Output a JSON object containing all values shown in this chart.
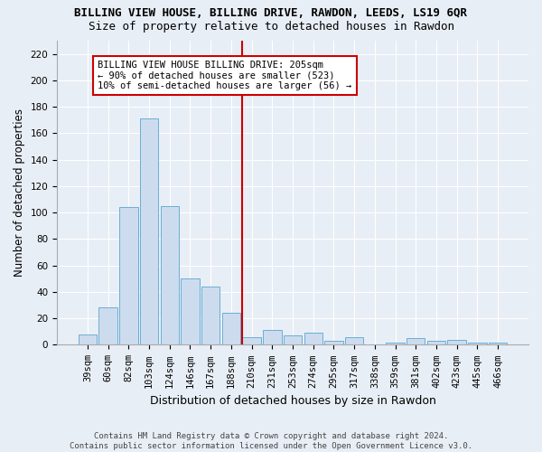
{
  "title": "BILLING VIEW HOUSE, BILLING DRIVE, RAWDON, LEEDS, LS19 6QR",
  "subtitle": "Size of property relative to detached houses in Rawdon",
  "xlabel": "Distribution of detached houses by size in Rawdon",
  "ylabel": "Number of detached properties",
  "bar_labels": [
    "39sqm",
    "60sqm",
    "82sqm",
    "103sqm",
    "124sqm",
    "146sqm",
    "167sqm",
    "188sqm",
    "210sqm",
    "231sqm",
    "253sqm",
    "274sqm",
    "295sqm",
    "317sqm",
    "338sqm",
    "359sqm",
    "381sqm",
    "402sqm",
    "423sqm",
    "445sqm",
    "466sqm"
  ],
  "bar_values": [
    8,
    28,
    104,
    171,
    105,
    50,
    44,
    24,
    6,
    11,
    7,
    9,
    3,
    6,
    0,
    2,
    5,
    3,
    4,
    2,
    2
  ],
  "bar_color": "#ccdcee",
  "bar_edge_color": "#6baed6",
  "vline_color": "#cc0000",
  "annotation_line1": "BILLING VIEW HOUSE BILLING DRIVE: 205sqm",
  "annotation_line2": "← 90% of detached houses are smaller (523)",
  "annotation_line3": "10% of semi-detached houses are larger (56) →",
  "annotation_box_color": "#ffffff",
  "annotation_edge_color": "#cc0000",
  "ylim": [
    0,
    230
  ],
  "yticks": [
    0,
    20,
    40,
    60,
    80,
    100,
    120,
    140,
    160,
    180,
    200,
    220
  ],
  "footer_line1": "Contains HM Land Registry data © Crown copyright and database right 2024.",
  "footer_line2": "Contains public sector information licensed under the Open Government Licence v3.0.",
  "bg_color": "#e8eef5",
  "grid_color": "#ffffff",
  "title_fontsize": 9,
  "subtitle_fontsize": 9,
  "tick_fontsize": 7.5,
  "ylabel_fontsize": 8.5,
  "xlabel_fontsize": 9
}
